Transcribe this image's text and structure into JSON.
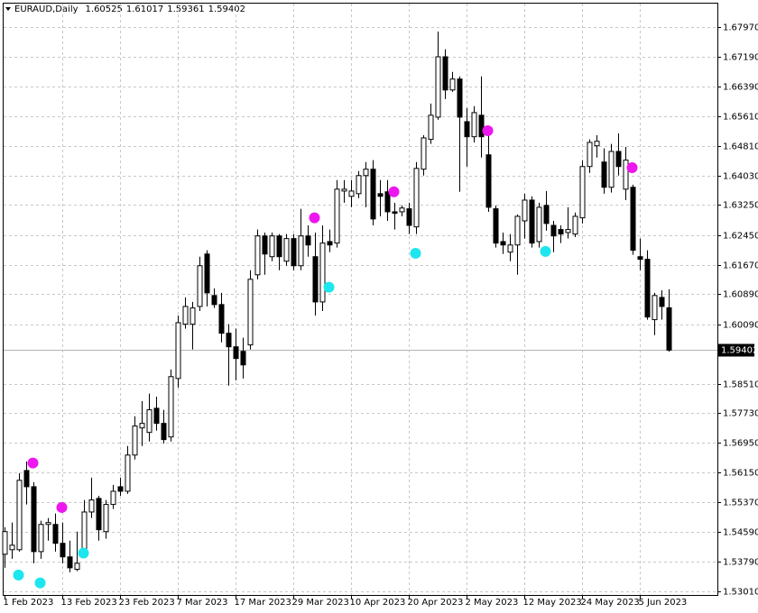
{
  "chart_data": {
    "type": "candlestick",
    "symbol": "EURAUD,Daily",
    "categories": [
      "1 Feb 2023",
      null,
      null,
      null,
      null,
      null,
      null,
      null,
      "13 Feb 2023",
      null,
      null,
      null,
      null,
      null,
      null,
      null,
      "23 Feb 2023",
      null,
      null,
      null,
      null,
      null,
      null,
      null,
      "7 Mar 2023",
      null,
      null,
      null,
      null,
      null,
      null,
      null,
      "17 Mar 2023",
      null,
      null,
      null,
      null,
      null,
      null,
      null,
      "29 Mar 2023",
      null,
      null,
      null,
      null,
      null,
      null,
      null,
      "10 Apr 2023",
      null,
      null,
      null,
      null,
      null,
      null,
      null,
      "20 Apr 2023",
      null,
      null,
      null,
      null,
      null,
      null,
      null,
      "2 May 2023",
      null,
      null,
      null,
      null,
      null,
      null,
      null,
      "12 May 2023",
      null,
      null,
      null,
      null,
      null,
      null,
      null,
      "24 May 2023",
      null,
      null,
      null,
      null,
      null,
      null,
      null,
      "5 Jun 2023",
      null,
      null,
      null,
      null
    ],
    "ohlc": [
      [
        1.5399,
        1.5471,
        1.5363,
        1.5459
      ],
      [
        1.5411,
        1.5483,
        1.5387,
        1.5423
      ],
      [
        1.5411,
        1.5614,
        1.5406,
        1.5595
      ],
      [
        1.5621,
        1.5645,
        1.5531,
        1.5578
      ],
      [
        1.5578,
        1.559,
        1.5375,
        1.5406
      ],
      [
        1.5406,
        1.5488,
        1.5387,
        1.5478
      ],
      [
        1.5478,
        1.5495,
        1.5435,
        1.5483
      ],
      [
        1.5478,
        1.5507,
        1.5406,
        1.5428
      ],
      [
        1.5428,
        1.5483,
        1.5375,
        1.5392
      ],
      [
        1.5392,
        1.5435,
        1.5351,
        1.5363
      ],
      [
        1.5359,
        1.5459,
        1.5354,
        1.5375
      ],
      [
        1.5411,
        1.5543,
        1.5399,
        1.5511
      ],
      [
        1.5511,
        1.5602,
        1.5495,
        1.5543
      ],
      [
        1.5547,
        1.5554,
        1.5435,
        1.5464
      ],
      [
        1.5459,
        1.5543,
        1.544,
        1.5531
      ],
      [
        1.5531,
        1.5583,
        1.5519,
        1.5566
      ],
      [
        1.5578,
        1.5602,
        1.5554,
        1.5566
      ],
      [
        1.5566,
        1.5686,
        1.5559,
        1.5662
      ],
      [
        1.5662,
        1.5765,
        1.565,
        1.5739
      ],
      [
        1.5734,
        1.5805,
        1.5686,
        1.5746
      ],
      [
        1.5722,
        1.5825,
        1.5698,
        1.5782
      ],
      [
        1.5786,
        1.5817,
        1.5727,
        1.5746
      ],
      [
        1.5746,
        1.5782,
        1.5693,
        1.5703
      ],
      [
        1.571,
        1.5889,
        1.5698,
        1.587
      ],
      [
        1.5865,
        1.6032,
        1.5841,
        1.6013
      ],
      [
        1.6009,
        1.608,
        1.5997,
        1.6056
      ],
      [
        1.6009,
        1.6068,
        1.5942,
        1.6052
      ],
      [
        1.6056,
        1.6188,
        1.6044,
        1.6164
      ],
      [
        1.6195,
        1.6205,
        1.6056,
        1.6092
      ],
      [
        1.6085,
        1.6104,
        1.6052,
        1.6061
      ],
      [
        1.6061,
        1.6092,
        1.5961,
        1.5985
      ],
      [
        1.5985,
        1.6009,
        1.5846,
        1.5949
      ],
      [
        1.5949,
        1.5997,
        1.586,
        1.5918
      ],
      [
        1.5937,
        1.5973,
        1.5865,
        1.5901
      ],
      [
        1.5954,
        1.6152,
        1.5942,
        1.6128
      ],
      [
        1.614,
        1.626,
        1.6128,
        1.6243
      ],
      [
        1.6243,
        1.6252,
        1.614,
        1.6195
      ],
      [
        1.6188,
        1.6252,
        1.6176,
        1.6243
      ],
      [
        1.6243,
        1.6248,
        1.6152,
        1.6188
      ],
      [
        1.6176,
        1.6248,
        1.6164,
        1.6236
      ],
      [
        1.6236,
        1.6248,
        1.6152,
        1.6164
      ],
      [
        1.6164,
        1.6315,
        1.6152,
        1.6243
      ],
      [
        1.6243,
        1.6271,
        1.6188,
        1.6219
      ],
      [
        1.6188,
        1.6252,
        1.6032,
        1.6068
      ],
      [
        1.6068,
        1.6271,
        1.6044,
        1.6224
      ],
      [
        1.6228,
        1.626,
        1.62,
        1.6219
      ],
      [
        1.6224,
        1.6391,
        1.6212,
        1.6367
      ],
      [
        1.6362,
        1.6391,
        1.6331,
        1.6367
      ],
      [
        1.6348,
        1.6391,
        1.6319,
        1.6362
      ],
      [
        1.6355,
        1.6415,
        1.6343,
        1.6403
      ],
      [
        1.6403,
        1.6439,
        1.6319,
        1.642
      ],
      [
        1.642,
        1.6444,
        1.6271,
        1.6288
      ],
      [
        1.6355,
        1.6391,
        1.6295,
        1.6348
      ],
      [
        1.636,
        1.6391,
        1.6283,
        1.6307
      ],
      [
        1.6307,
        1.6331,
        1.626,
        1.6303
      ],
      [
        1.6307,
        1.6324,
        1.6295,
        1.6317
      ],
      [
        1.6315,
        1.6331,
        1.6248,
        1.6271
      ],
      [
        1.6267,
        1.6439,
        1.6248,
        1.6422
      ],
      [
        1.642,
        1.651,
        1.6403,
        1.6503
      ],
      [
        1.6499,
        1.6594,
        1.6487,
        1.6563
      ],
      [
        1.6558,
        1.6785,
        1.6551,
        1.6718
      ],
      [
        1.6718,
        1.6738,
        1.6606,
        1.663
      ],
      [
        1.663,
        1.6678,
        1.6625,
        1.6659
      ],
      [
        1.6659,
        1.6666,
        1.636,
        1.6558
      ],
      [
        1.6546,
        1.6582,
        1.6427,
        1.6506
      ],
      [
        1.6506,
        1.6587,
        1.6491,
        1.657
      ],
      [
        1.6563,
        1.6666,
        1.6451,
        1.6506
      ],
      [
        1.6458,
        1.6522,
        1.6307,
        1.6319
      ],
      [
        1.6315,
        1.6324,
        1.6212,
        1.6224
      ],
      [
        1.6228,
        1.6252,
        1.6195,
        1.6219
      ],
      [
        1.62,
        1.6248,
        1.6176,
        1.6219
      ],
      [
        1.6219,
        1.63,
        1.614,
        1.6295
      ],
      [
        1.6283,
        1.6355,
        1.6236,
        1.6338
      ],
      [
        1.6338,
        1.6348,
        1.6212,
        1.6224
      ],
      [
        1.6228,
        1.6331,
        1.6212,
        1.6319
      ],
      [
        1.6324,
        1.6362,
        1.6257,
        1.6276
      ],
      [
        1.6271,
        1.6283,
        1.62,
        1.6243
      ],
      [
        1.626,
        1.6271,
        1.6224,
        1.6248
      ],
      [
        1.6252,
        1.6319,
        1.6236,
        1.626
      ],
      [
        1.6248,
        1.6305,
        1.624,
        1.6295
      ],
      [
        1.6291,
        1.6444,
        1.6276,
        1.6427
      ],
      [
        1.6427,
        1.6499,
        1.641,
        1.6491
      ],
      [
        1.6482,
        1.651,
        1.6451,
        1.6494
      ],
      [
        1.6439,
        1.6475,
        1.6355,
        1.6372
      ],
      [
        1.6372,
        1.6487,
        1.6358,
        1.6467
      ],
      [
        1.6467,
        1.6515,
        1.6403,
        1.6427
      ],
      [
        1.6367,
        1.6479,
        1.6338,
        1.6444
      ],
      [
        1.6372,
        1.6379,
        1.6193,
        1.6205
      ],
      [
        1.6188,
        1.6236,
        1.6152,
        1.6181
      ],
      [
        1.6181,
        1.6205,
        1.6021,
        1.6028
      ],
      [
        1.6021,
        1.6092,
        1.598,
        1.6085
      ],
      [
        1.608,
        1.6099,
        1.6021,
        1.6056
      ],
      [
        1.60525,
        1.61017,
        1.59361,
        1.59402
      ]
    ],
    "sell_markers": [
      null,
      null,
      null,
      null,
      1.5641,
      null,
      null,
      null,
      1.5523,
      null,
      null,
      null,
      null,
      null,
      null,
      null,
      null,
      null,
      null,
      null,
      null,
      null,
      null,
      null,
      null,
      null,
      null,
      null,
      null,
      null,
      null,
      null,
      null,
      null,
      null,
      null,
      null,
      null,
      null,
      null,
      null,
      null,
      null,
      1.6291,
      null,
      null,
      null,
      null,
      null,
      null,
      null,
      null,
      null,
      null,
      1.636,
      null,
      null,
      null,
      null,
      null,
      null,
      null,
      null,
      null,
      null,
      null,
      null,
      1.6522,
      null,
      null,
      null,
      null,
      null,
      null,
      null,
      null,
      null,
      null,
      null,
      null,
      null,
      null,
      null,
      null,
      null,
      null,
      null,
      1.6424,
      null,
      null,
      null,
      null
    ],
    "buy_markers": [
      null,
      null,
      1.5344,
      null,
      null,
      1.5323,
      null,
      null,
      null,
      null,
      null,
      1.5402,
      null,
      null,
      null,
      null,
      null,
      null,
      null,
      null,
      null,
      null,
      null,
      null,
      null,
      null,
      null,
      null,
      null,
      null,
      null,
      null,
      null,
      null,
      null,
      null,
      null,
      null,
      null,
      null,
      null,
      null,
      null,
      null,
      null,
      1.6107,
      null,
      null,
      null,
      null,
      null,
      null,
      null,
      null,
      null,
      null,
      null,
      1.6197,
      null,
      null,
      null,
      null,
      null,
      null,
      null,
      null,
      null,
      null,
      null,
      null,
      null,
      null,
      null,
      null,
      null,
      1.6202,
      null,
      null,
      null,
      null,
      null,
      null,
      null,
      null,
      null,
      null,
      null,
      null,
      null,
      null,
      null,
      null
    ],
    "sell_marker_color": "#ee16ee",
    "buy_marker_color": "#1de6ee",
    "bull_color": "#ffffff",
    "bear_color": "#000000",
    "ylim": [
      1.5291,
      1.6859
    ],
    "yticks": [
      {
        "value": 1.6797,
        "label": "1.67970"
      },
      {
        "value": 1.6719,
        "label": "1.67190"
      },
      {
        "value": 1.6639,
        "label": "1.66390"
      },
      {
        "value": 1.6561,
        "label": "1.65610"
      },
      {
        "value": 1.6481,
        "label": "1.64810"
      },
      {
        "value": 1.6403,
        "label": "1.64030"
      },
      {
        "value": 1.6325,
        "label": "1.63250"
      },
      {
        "value": 1.6245,
        "label": "1.62450"
      },
      {
        "value": 1.6167,
        "label": "1.61670"
      },
      {
        "value": 1.6089,
        "label": "1.60890"
      },
      {
        "value": 1.6009,
        "label": "1.60090"
      },
      {
        "value": 1.5851,
        "label": "1.58510"
      },
      {
        "value": 1.5773,
        "label": "1.57730"
      },
      {
        "value": 1.5695,
        "label": "1.56950"
      },
      {
        "value": 1.5615,
        "label": "1.56150"
      },
      {
        "value": 1.5537,
        "label": "1.55370"
      },
      {
        "value": 1.5459,
        "label": "1.54590"
      },
      {
        "value": 1.5379,
        "label": "1.53790"
      },
      {
        "value": 1.5301,
        "label": "1.53010"
      }
    ],
    "grid": true
  }
}
